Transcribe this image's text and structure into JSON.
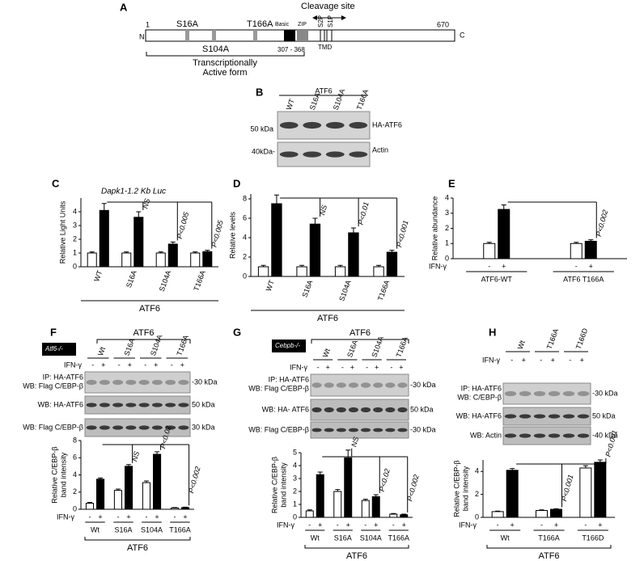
{
  "figure": {
    "panel_a": {
      "label": "A",
      "cleavage": "Cleavage site",
      "n": "N",
      "c": "C",
      "start": "1",
      "end": "670",
      "s16": "S16A",
      "s104": "S104A",
      "t166": "T166A",
      "basic": "Basic",
      "zip": "ZIP",
      "s2p": "S2P",
      "s1p": "S1P",
      "range": "307 - 368",
      "tmd": "TMD",
      "active1": "Transcriptionally",
      "active2": "Active form"
    },
    "panel_b": {
      "label": "B",
      "header": "ATF6",
      "lanes": [
        "WT",
        "S16A",
        "S104A",
        "T166A"
      ],
      "marker1": "50 kDa",
      "marker2": "40kDa-",
      "row1": "HA-ATF6",
      "row2": "Actin"
    },
    "panel_f": {
      "label": "F",
      "header": "ATF6",
      "genotype": "Atf6-/-",
      "treatment": "IFN-γ",
      "lanes": [
        "Wt",
        "S16A",
        "S104A",
        "T166A"
      ],
      "signs": [
        "-",
        "+"
      ],
      "rows": [
        "IP: HA-ATF6",
        "WB: Flag C/EBP-β",
        "WB: HA-ATF6",
        "WB: Flag C/EBP-β"
      ],
      "markers": [
        "-30 kDa",
        "50 kDa",
        "30 kDa"
      ]
    },
    "panel_g": {
      "label": "G",
      "header": "ATF6",
      "genotype": "Cebpb-/-",
      "treatment": "IFN-γ",
      "lanes": [
        "Wt",
        "S16A",
        "S104A",
        "T166A"
      ],
      "signs": [
        "-",
        "+"
      ],
      "rows": [
        "IP: HA-ATF6",
        "WB: Flag C/EBP-β",
        "WB: HA- ATF6",
        "WB: Flag C/EBP-β"
      ],
      "markers": [
        "-30 kDa",
        "50 kDa",
        "-30 kDa"
      ]
    },
    "panel_h": {
      "label": "H",
      "treatment": "IFN-γ",
      "lanes": [
        "Wt",
        "T166A",
        "T166D"
      ],
      "signs": [
        "-",
        "+"
      ],
      "rows": [
        "IP: HA-ATF6",
        "WB: C/EBP-β",
        "WB: HA-ATF6",
        "WB: Actin"
      ],
      "markers": [
        "-30 kDa",
        "50 kDa",
        "-40 kDa"
      ]
    }
  },
  "chart_data": [
    {
      "type": "bar",
      "panel": "C",
      "title": "Dapk1-1.2 Kb Luc",
      "ylabel": "Relative Light Units",
      "categories": [
        "WT",
        "S16A",
        "S104A",
        "T166A"
      ],
      "group_label": "ATF6",
      "series": [
        {
          "color": "#ffffff",
          "values": [
            1,
            1,
            1,
            1
          ],
          "errors": [
            0.08,
            0.08,
            0.08,
            0.08
          ]
        },
        {
          "color": "#000000",
          "values": [
            4.1,
            3.6,
            1.65,
            1.1
          ],
          "errors": [
            0.5,
            0.4,
            0.15,
            0.1
          ]
        }
      ],
      "annotations": [
        null,
        "NS",
        "P<0.005",
        "P<0.005"
      ],
      "ylim": [
        0,
        5
      ],
      "yticks": [
        0,
        1,
        2,
        3,
        4
      ]
    },
    {
      "type": "bar",
      "panel": "D",
      "ylabel": "Relative levels",
      "categories": [
        "WT",
        "S16A",
        "S104A",
        "T166A"
      ],
      "group_label": "ATF6",
      "series": [
        {
          "color": "#ffffff",
          "values": [
            1,
            1,
            1,
            1
          ],
          "errors": [
            0.15,
            0.15,
            0.15,
            0.15
          ]
        },
        {
          "color": "#000000",
          "values": [
            7.5,
            5.4,
            4.5,
            2.5
          ],
          "errors": [
            0.9,
            0.6,
            0.5,
            0.2
          ]
        }
      ],
      "annotations": [
        null,
        "NS",
        "P<0.01",
        "P<0.001"
      ],
      "ylim": [
        0,
        8.5
      ],
      "yticks": [
        0,
        2,
        4,
        6,
        8
      ]
    },
    {
      "type": "bar",
      "panel": "E",
      "ylabel": "Relative abundance",
      "categories": [
        "ATF6-WT",
        "ATF6 T166A"
      ],
      "treatment_label": "IFN-γ",
      "treatment_marks": [
        "-",
        "+"
      ],
      "series": [
        {
          "color": "#ffffff",
          "values": [
            1,
            1
          ],
          "errors": [
            0.08,
            0.08
          ]
        },
        {
          "color": "#000000",
          "values": [
            3.25,
            1.15
          ],
          "errors": [
            0.3,
            0.1
          ]
        }
      ],
      "annotations": [
        null,
        "P<0.002"
      ],
      "ylim": [
        0,
        4
      ],
      "yticks": [
        0,
        1,
        2,
        3,
        4
      ]
    },
    {
      "type": "bar",
      "panel": "F",
      "ylabel": [
        "Relative C/EBP-β",
        "band intensity"
      ],
      "categories": [
        "Wt",
        "S16A",
        "S104A",
        "T166A"
      ],
      "treatment_label": "IFN-γ",
      "treatment_marks": [
        "-",
        "+"
      ],
      "group_label": "ATF6",
      "series": [
        {
          "color": "#ffffff",
          "values": [
            0.7,
            2.2,
            3.1,
            0.15
          ],
          "errors": [
            0.1,
            0.15,
            0.2,
            0.05
          ]
        },
        {
          "color": "#000000",
          "values": [
            3.5,
            5.0,
            6.4,
            0.2
          ],
          "errors": [
            0.15,
            0.2,
            0.3,
            0.05
          ]
        }
      ],
      "annotations": [
        null,
        "NS",
        "P<0.02",
        "P<0.002"
      ],
      "ylim": [
        0,
        8
      ],
      "yticks": [
        0,
        2,
        4,
        6,
        8
      ]
    },
    {
      "type": "bar",
      "panel": "G",
      "ylabel": [
        "Relative C/EBP-β",
        "band intensity"
      ],
      "categories": [
        "Wt",
        "S16A",
        "S104A",
        "T166A"
      ],
      "treatment_label": "IFN-γ",
      "treatment_marks": [
        "-",
        "+"
      ],
      "group_label": "ATF6",
      "series": [
        {
          "color": "#ffffff",
          "values": [
            0.5,
            2.0,
            1.3,
            0.25
          ],
          "errors": [
            0.08,
            0.15,
            0.1,
            0.05
          ]
        },
        {
          "color": "#000000",
          "values": [
            3.3,
            4.6,
            1.6,
            0.2
          ],
          "errors": [
            0.2,
            0.6,
            0.15,
            0.05
          ]
        }
      ],
      "annotations": [
        null,
        "NS",
        "P<0.02",
        "P<0.002"
      ],
      "ylim": [
        0,
        5
      ],
      "yticks": [
        0,
        1,
        2,
        3,
        4,
        5
      ]
    },
    {
      "type": "bar",
      "panel": "H",
      "ylabel": [
        "Relative C/EBP-β",
        "band intensity"
      ],
      "categories": [
        "Wt",
        "T166A",
        "T166D"
      ],
      "treatment_label": "IFN-γ",
      "treatment_marks": [
        "-",
        "+"
      ],
      "group_label": "ATF6",
      "series": [
        {
          "color": "#ffffff",
          "values": [
            0.5,
            0.6,
            4.3
          ],
          "errors": [
            0.05,
            0.05,
            0.2
          ]
        },
        {
          "color": "#000000",
          "values": [
            4.1,
            0.7,
            4.8
          ],
          "errors": [
            0.15,
            0.05,
            0.2
          ]
        }
      ],
      "annotations": [
        null,
        "P<0.001",
        "P<0.001"
      ],
      "ylim": [
        0,
        5
      ],
      "yticks": [
        0,
        2,
        4
      ]
    }
  ]
}
